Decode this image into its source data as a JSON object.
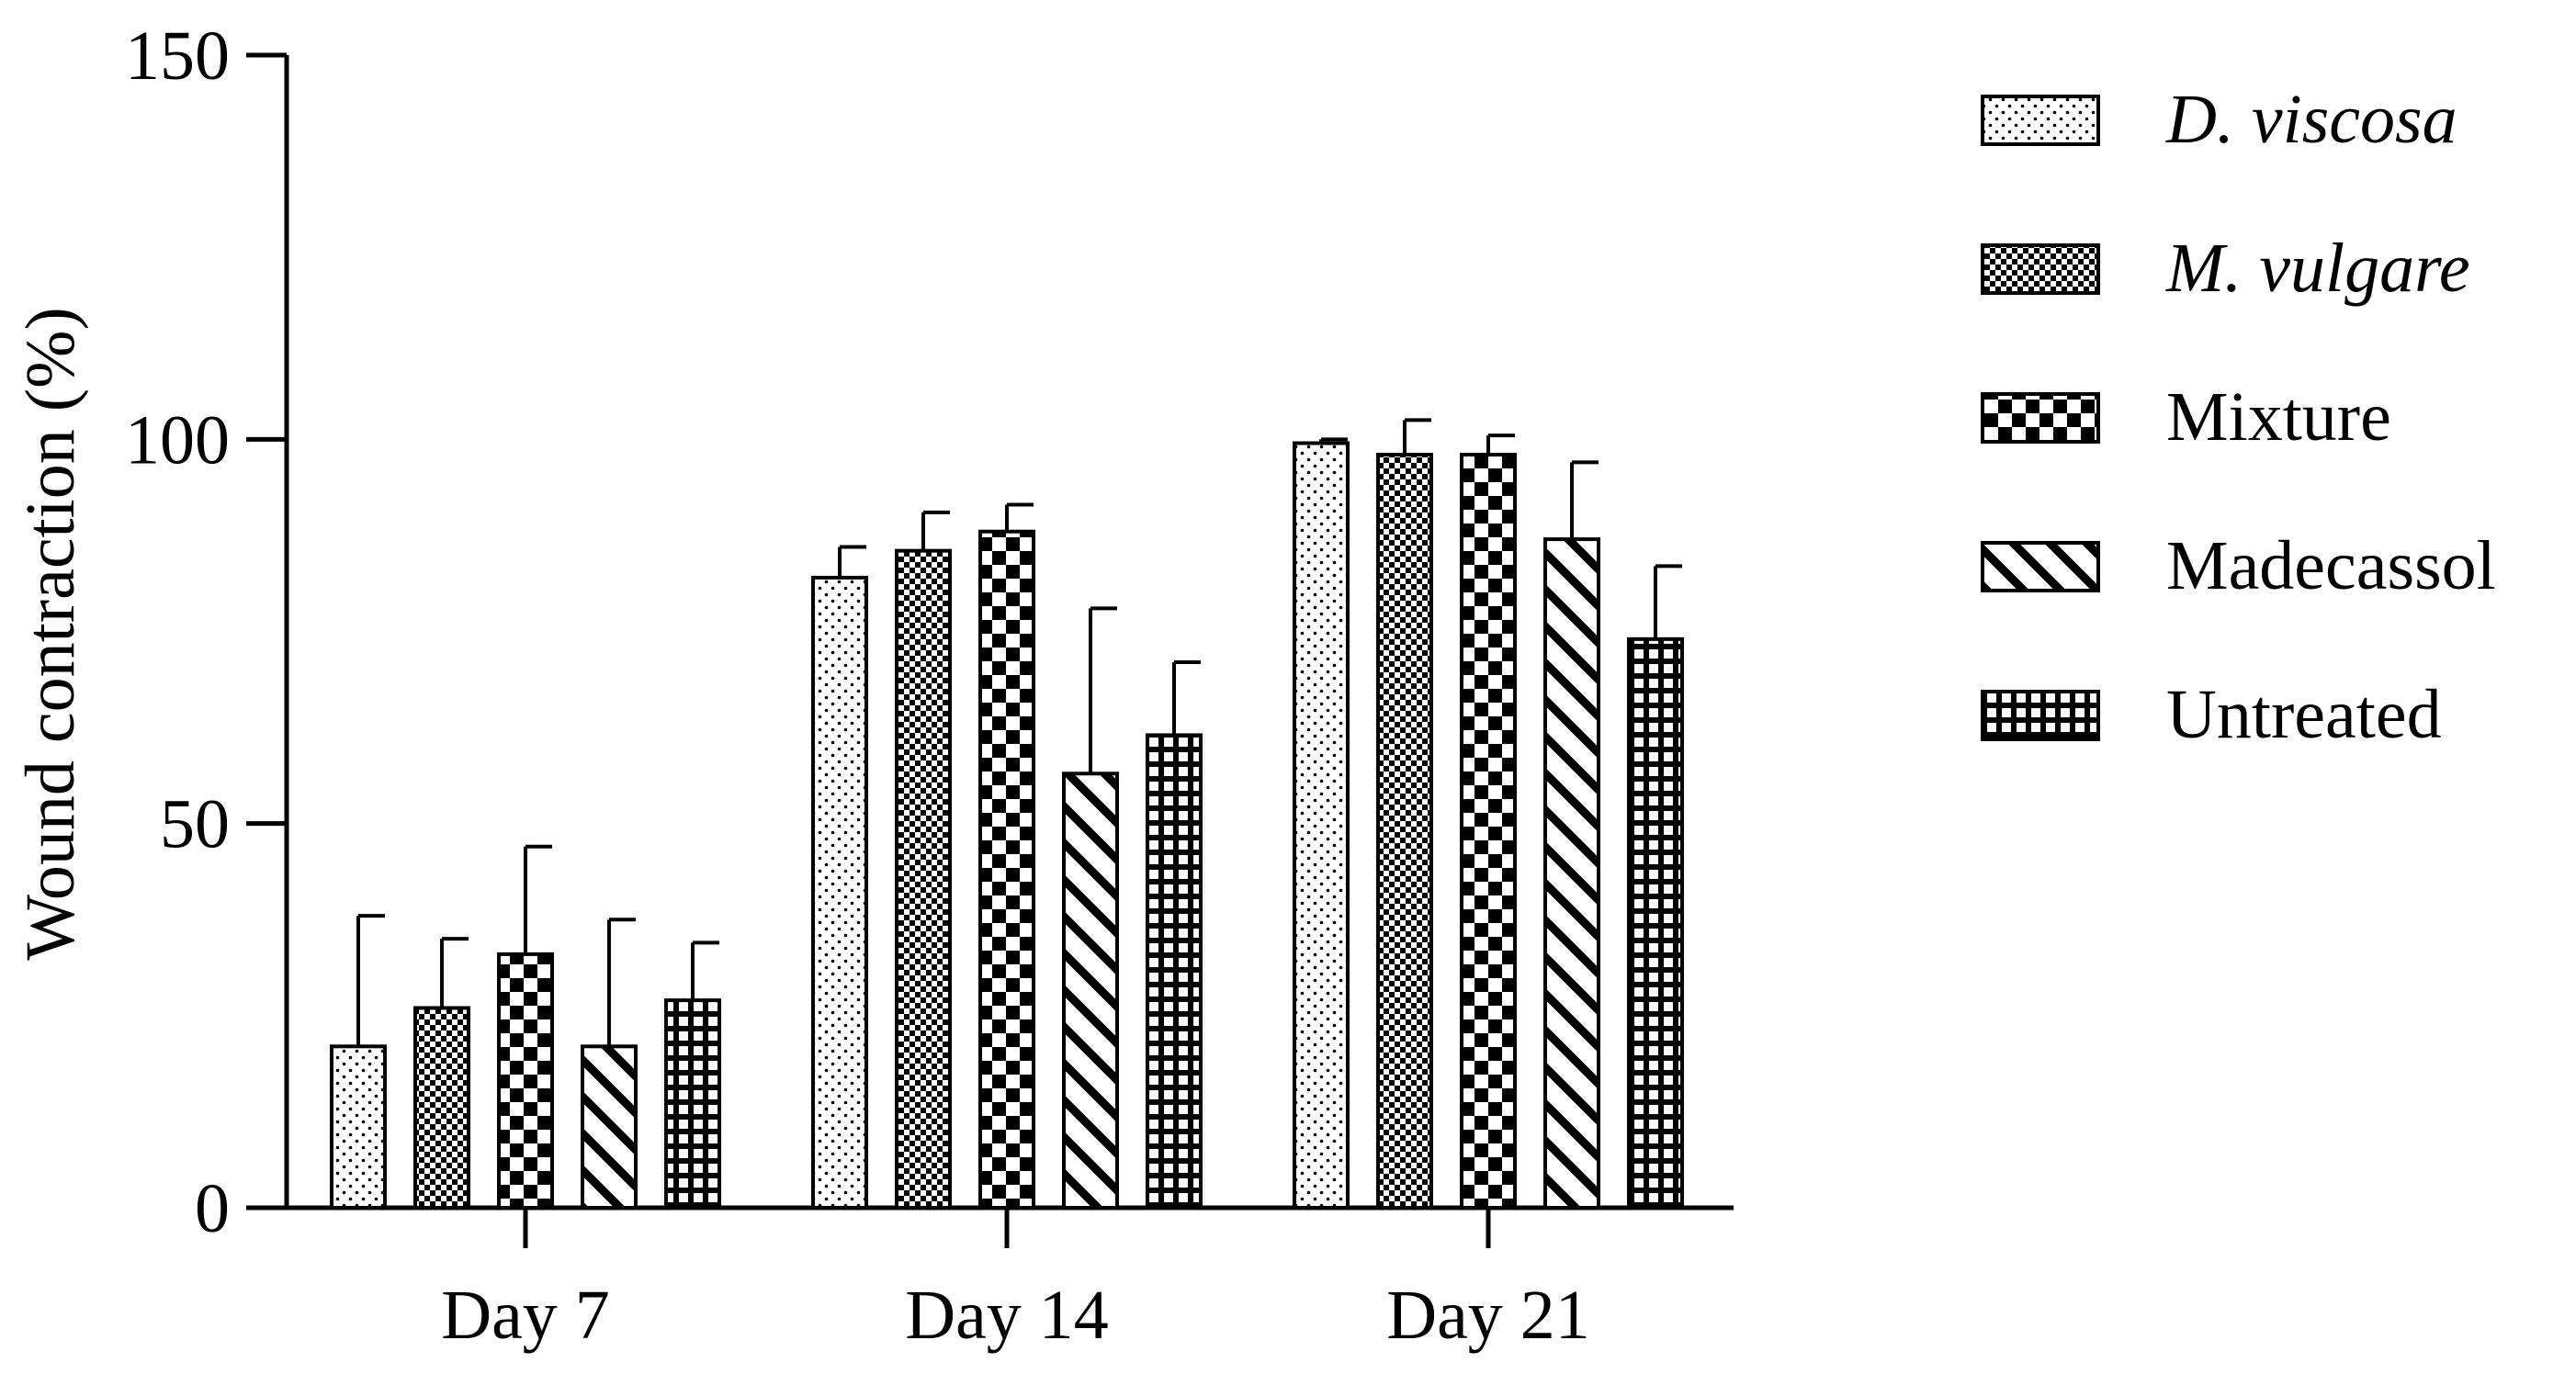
{
  "chart_data": {
    "type": "bar",
    "title": "",
    "xlabel": "",
    "ylabel": "Wound contraction (%)",
    "ylim": [
      0,
      150
    ],
    "yticks": [
      0,
      50,
      100,
      150
    ],
    "grid": false,
    "legend_position": "right",
    "categories": [
      "Day 7",
      "Day 14",
      "Day 21"
    ],
    "series": [
      {
        "name": "D. viscosa",
        "italic": true,
        "pattern": "dots",
        "values": [
          21,
          82,
          99.5
        ],
        "errors": [
          17,
          4,
          0.5
        ]
      },
      {
        "name": "M. vulgare",
        "italic": true,
        "pattern": "fine-checker",
        "values": [
          26,
          85.5,
          98
        ],
        "errors": [
          9,
          5,
          4.5
        ]
      },
      {
        "name": "Mixture",
        "italic": false,
        "pattern": "checker",
        "values": [
          33,
          88,
          98
        ],
        "errors": [
          14,
          3.5,
          2.5
        ]
      },
      {
        "name": "Madecassol",
        "italic": false,
        "pattern": "diagonal",
        "values": [
          21,
          56.5,
          87
        ],
        "errors": [
          16.5,
          21.5,
          10
        ]
      },
      {
        "name": "Untreated",
        "italic": false,
        "pattern": "grid",
        "values": [
          27,
          61.5,
          74
        ],
        "errors": [
          7.5,
          9.5,
          9.5
        ]
      }
    ]
  }
}
